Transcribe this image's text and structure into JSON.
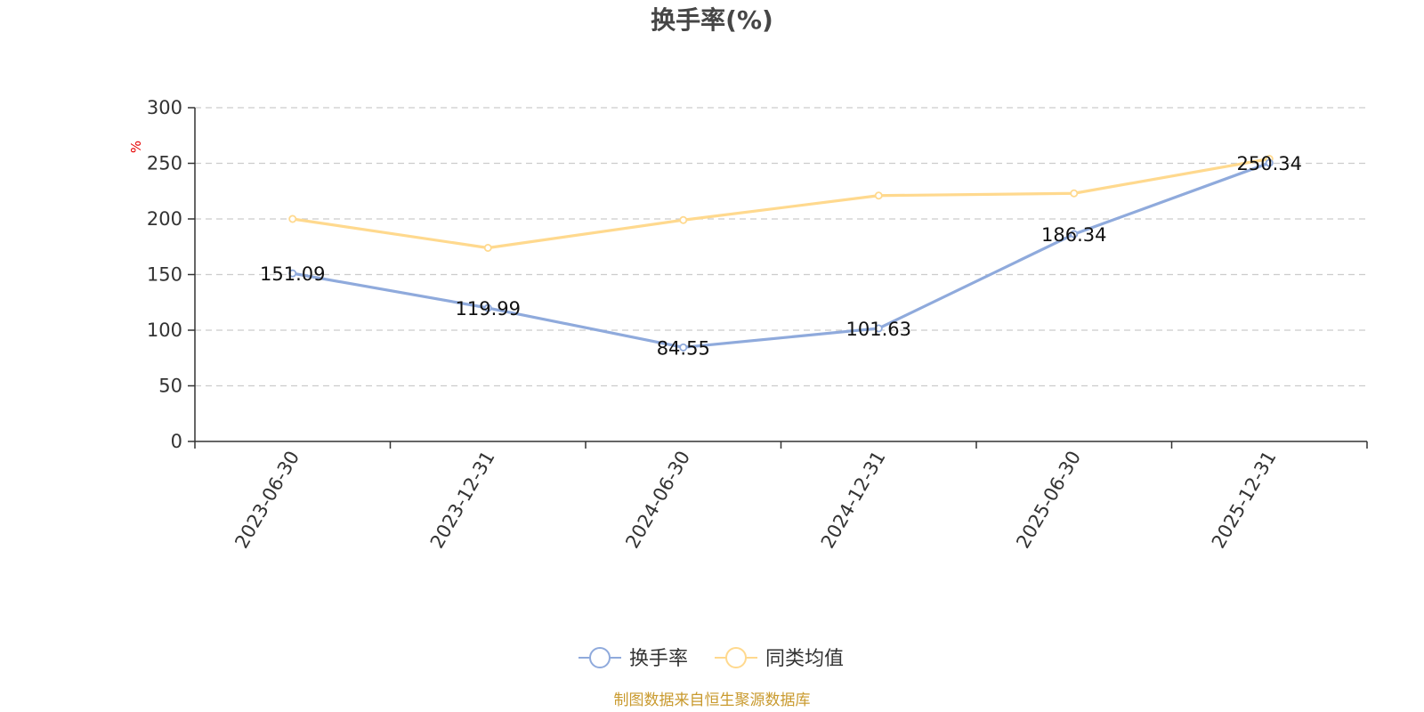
{
  "chart_data": {
    "type": "line",
    "title": "换手率(%)",
    "ylabel": "%",
    "xlabel": "",
    "categories": [
      "2023-06-30",
      "2023-12-31",
      "2024-06-30",
      "2024-12-31",
      "2025-06-30",
      "2025-12-31"
    ],
    "ylim": [
      0,
      300
    ],
    "yticks": [
      0,
      50,
      100,
      150,
      200,
      250,
      300
    ],
    "grid": true,
    "legend_position": "bottom",
    "series": [
      {
        "name": "换手率",
        "color": "#8faadc",
        "values": [
          151.09,
          119.99,
          84.55,
          101.63,
          186.34,
          250.34
        ],
        "labels": [
          "151.09",
          "119.99",
          "84.55",
          "101.63",
          "186.34",
          "250.34"
        ]
      },
      {
        "name": "同类均值",
        "color": "#ffd98e",
        "values": [
          200,
          174,
          199,
          221,
          223,
          254
        ]
      }
    ],
    "source": "制图数据来自恒生聚源数据库"
  }
}
